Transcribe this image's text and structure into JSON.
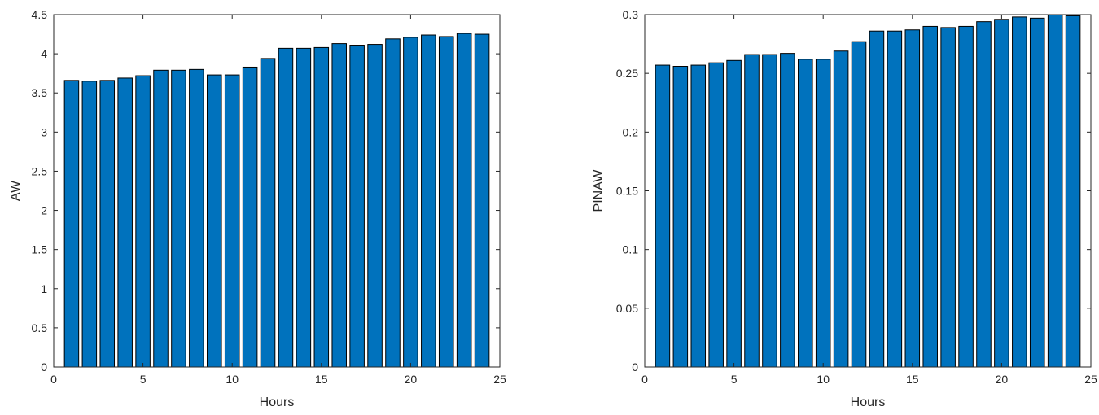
{
  "chart_data": [
    {
      "type": "bar",
      "title": "",
      "xlabel": "Hours",
      "ylabel": "AW",
      "x": [
        1,
        2,
        3,
        4,
        5,
        6,
        7,
        8,
        9,
        10,
        11,
        12,
        13,
        14,
        15,
        16,
        17,
        18,
        19,
        20,
        21,
        22,
        23,
        24
      ],
      "values": [
        3.66,
        3.65,
        3.66,
        3.69,
        3.72,
        3.79,
        3.79,
        3.8,
        3.73,
        3.73,
        3.83,
        3.94,
        4.07,
        4.07,
        4.08,
        4.13,
        4.11,
        4.12,
        4.19,
        4.21,
        4.24,
        4.22,
        4.26,
        4.25
      ],
      "xlim": [
        0,
        25
      ],
      "ylim": [
        0,
        4.5
      ],
      "xticks": [
        "0",
        "5",
        "10",
        "15",
        "20",
        "25"
      ],
      "yticks": [
        "0",
        "0.5",
        "1",
        "1.5",
        "2",
        "2.5",
        "3",
        "3.5",
        "4",
        "4.5"
      ],
      "grid": false,
      "bar_color": "#0072BD"
    },
    {
      "type": "bar",
      "title": "",
      "xlabel": "Hours",
      "ylabel": "PINAW",
      "x": [
        1,
        2,
        3,
        4,
        5,
        6,
        7,
        8,
        9,
        10,
        11,
        12,
        13,
        14,
        15,
        16,
        17,
        18,
        19,
        20,
        21,
        22,
        23,
        24
      ],
      "values": [
        0.257,
        0.256,
        0.257,
        0.259,
        0.261,
        0.266,
        0.266,
        0.267,
        0.262,
        0.262,
        0.269,
        0.277,
        0.286,
        0.286,
        0.287,
        0.29,
        0.289,
        0.29,
        0.294,
        0.296,
        0.298,
        0.297,
        0.3,
        0.299
      ],
      "xlim": [
        0,
        25
      ],
      "ylim": [
        0,
        0.3
      ],
      "xticks": [
        "0",
        "5",
        "10",
        "15",
        "20",
        "25"
      ],
      "yticks": [
        "0",
        "0.05",
        "0.1",
        "0.15",
        "0.2",
        "0.25",
        "0.3"
      ],
      "grid": false,
      "bar_color": "#0072BD"
    }
  ]
}
